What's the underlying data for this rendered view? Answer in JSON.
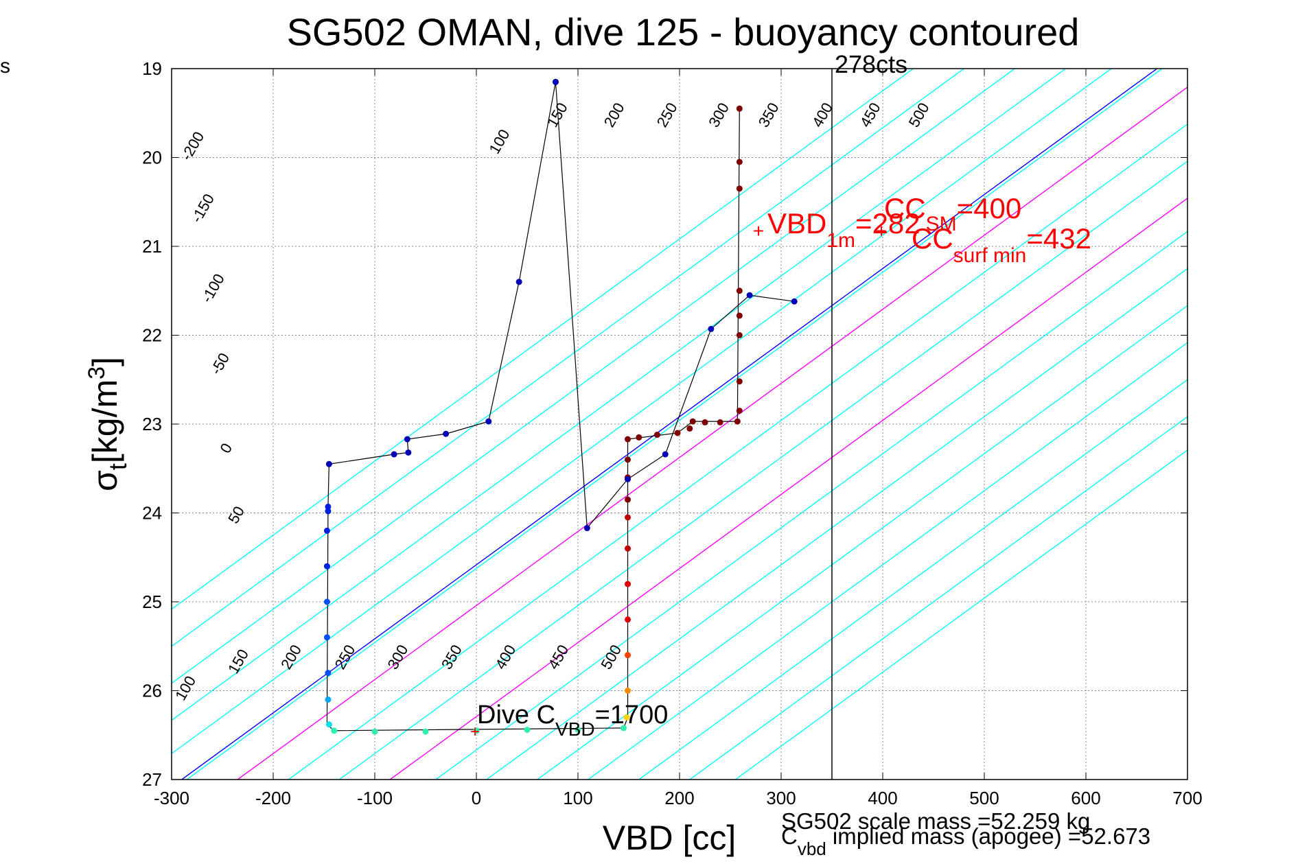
{
  "chart_data": {
    "type": "scatter",
    "title": "SG502 OMAN, dive 125 - buoyancy contoured",
    "corner_label": "s",
    "xlabel": "VBD [cc]",
    "ylabel_main": "σ",
    "ylabel_sub": "t",
    "ylabel_units": "[kg/m",
    "ylabel_sup": "3",
    "ylabel_close": "]",
    "xlim": [
      -300,
      700
    ],
    "ylim": [
      27,
      19
    ],
    "y_reversed": true,
    "grid": true,
    "x_ticks": [
      -300,
      -200,
      -100,
      0,
      100,
      200,
      300,
      400,
      500,
      600,
      700
    ],
    "x_tick_labels": [
      "-300",
      "-200",
      "-100",
      "0",
      "100",
      "200",
      "300",
      "400",
      "500",
      "600",
      "700"
    ],
    "y_ticks": [
      19,
      20,
      21,
      22,
      23,
      24,
      25,
      26,
      27
    ],
    "y_tick_labels": [
      "19",
      "20",
      "21",
      "22",
      "23",
      "24",
      "25",
      "26",
      "27"
    ],
    "colors": {
      "contour": "#00ffff",
      "contour_zero": "#0000ff",
      "contour_highlight": "#ff00ff",
      "annotation": "#ff0000",
      "path": "#000000",
      "vline": "#000000"
    },
    "contours": {
      "slope_cc_per_sigma": 120,
      "lines": [
        {
          "vbd_at_27": -530,
          "color": "contour"
        },
        {
          "vbd_at_27": -480,
          "color": "contour"
        },
        {
          "vbd_at_27": -430,
          "color": "contour"
        },
        {
          "vbd_at_27": -380,
          "color": "contour"
        },
        {
          "vbd_at_27": -335,
          "color": "contour"
        },
        {
          "vbd_at_27": -290,
          "color": "contour_zero"
        },
        {
          "vbd_at_27": -285,
          "color": "contour"
        },
        {
          "vbd_at_27": -235,
          "color": "contour_highlight"
        },
        {
          "vbd_at_27": -185,
          "color": "contour"
        },
        {
          "vbd_at_27": -135,
          "color": "contour"
        },
        {
          "vbd_at_27": -85,
          "color": "contour_highlight"
        },
        {
          "vbd_at_27": -40,
          "color": "contour"
        },
        {
          "vbd_at_27": 10,
          "color": "contour"
        },
        {
          "vbd_at_27": 60,
          "color": "contour"
        },
        {
          "vbd_at_27": 110,
          "color": "contour"
        },
        {
          "vbd_at_27": 160,
          "color": "contour"
        },
        {
          "vbd_at_27": 210,
          "color": "contour"
        },
        {
          "vbd_at_27": 255,
          "color": "contour"
        }
      ]
    },
    "contour_labels": [
      {
        "text": "-200",
        "vbd": -275,
        "sigma": 19.9
      },
      {
        "text": "-150",
        "vbd": -265,
        "sigma": 20.6
      },
      {
        "text": "-100",
        "vbd": -255,
        "sigma": 21.5
      },
      {
        "text": "-50",
        "vbd": -248,
        "sigma": 22.35
      },
      {
        "text": "0",
        "vbd": -242,
        "sigma": 23.3
      },
      {
        "text": "50",
        "vbd": -232,
        "sigma": 24.05
      },
      {
        "text": "100",
        "vbd": 27,
        "sigma": 19.85
      },
      {
        "text": "150",
        "vbd": 84,
        "sigma": 19.55
      },
      {
        "text": "200",
        "vbd": 140,
        "sigma": 19.55
      },
      {
        "text": "250",
        "vbd": 192,
        "sigma": 19.55
      },
      {
        "text": "300",
        "vbd": 243,
        "sigma": 19.55
      },
      {
        "text": "350",
        "vbd": 292,
        "sigma": 19.55
      },
      {
        "text": "400",
        "vbd": 345,
        "sigma": 19.55
      },
      {
        "text": "450",
        "vbd": 392,
        "sigma": 19.55
      },
      {
        "text": "500",
        "vbd": 440,
        "sigma": 19.55
      },
      {
        "text": "100",
        "vbd": -282,
        "sigma": 26.0
      },
      {
        "text": "150",
        "vbd": -230,
        "sigma": 25.7
      },
      {
        "text": "200",
        "vbd": -178,
        "sigma": 25.65
      },
      {
        "text": "250",
        "vbd": -125,
        "sigma": 25.65
      },
      {
        "text": "300",
        "vbd": -73,
        "sigma": 25.65
      },
      {
        "text": "350",
        "vbd": -20,
        "sigma": 25.65
      },
      {
        "text": "400",
        "vbd": 33,
        "sigma": 25.65
      },
      {
        "text": "450",
        "vbd": 85,
        "sigma": 25.65
      },
      {
        "text": "500",
        "vbd": 137,
        "sigma": 25.65
      }
    ],
    "descent_points": [
      {
        "vbd": 78,
        "sigma": 19.15
      },
      {
        "vbd": 42,
        "sigma": 21.4
      },
      {
        "vbd": 12,
        "sigma": 22.97
      },
      {
        "vbd": -30,
        "sigma": 23.11
      },
      {
        "vbd": -68,
        "sigma": 23.17
      },
      {
        "vbd": -67,
        "sigma": 23.32
      },
      {
        "vbd": -81,
        "sigma": 23.34
      },
      {
        "vbd": -145,
        "sigma": 23.45
      },
      {
        "vbd": -146,
        "sigma": 23.93
      },
      {
        "vbd": -146,
        "sigma": 23.98
      },
      {
        "vbd": -147,
        "sigma": 24.2
      },
      {
        "vbd": -147,
        "sigma": 24.6
      },
      {
        "vbd": -147,
        "sigma": 25.0
      },
      {
        "vbd": -147,
        "sigma": 25.4
      },
      {
        "vbd": -146,
        "sigma": 25.8
      },
      {
        "vbd": -146,
        "sigma": 26.1
      },
      {
        "vbd": -145,
        "sigma": 26.38
      },
      {
        "vbd": -140,
        "sigma": 26.45
      },
      {
        "vbd": -100,
        "sigma": 26.46
      },
      {
        "vbd": -50,
        "sigma": 26.46
      },
      {
        "vbd": 0,
        "sigma": 26.45
      },
      {
        "vbd": 50,
        "sigma": 26.44
      },
      {
        "vbd": 100,
        "sigma": 26.44
      },
      {
        "vbd": 145,
        "sigma": 26.42
      }
    ],
    "ascent_points": [
      {
        "vbd": 148,
        "sigma": 26.3
      },
      {
        "vbd": 149,
        "sigma": 26.0
      },
      {
        "vbd": 149,
        "sigma": 25.6
      },
      {
        "vbd": 149,
        "sigma": 25.2
      },
      {
        "vbd": 149,
        "sigma": 24.8
      },
      {
        "vbd": 149,
        "sigma": 24.4
      },
      {
        "vbd": 149,
        "sigma": 24.05
      },
      {
        "vbd": 149,
        "sigma": 23.85
      },
      {
        "vbd": 149,
        "sigma": 23.6
      },
      {
        "vbd": 149,
        "sigma": 23.4
      },
      {
        "vbd": 149,
        "sigma": 23.17
      },
      {
        "vbd": 160,
        "sigma": 23.15
      },
      {
        "vbd": 178,
        "sigma": 23.12
      },
      {
        "vbd": 198,
        "sigma": 23.1
      },
      {
        "vbd": 210,
        "sigma": 23.05
      },
      {
        "vbd": 213,
        "sigma": 22.97
      },
      {
        "vbd": 225,
        "sigma": 22.98
      },
      {
        "vbd": 240,
        "sigma": 22.98
      },
      {
        "vbd": 257,
        "sigma": 22.97
      },
      {
        "vbd": 259,
        "sigma": 22.85
      },
      {
        "vbd": 259,
        "sigma": 22.52
      },
      {
        "vbd": 259,
        "sigma": 22.0
      },
      {
        "vbd": 259,
        "sigma": 21.78
      },
      {
        "vbd": 259,
        "sigma": 21.5
      },
      {
        "vbd": 259,
        "sigma": 20.35
      },
      {
        "vbd": 259,
        "sigma": 20.05
      },
      {
        "vbd": 259,
        "sigma": 19.45
      }
    ],
    "path_points": [
      {
        "vbd": 78,
        "sigma": 19.15
      },
      {
        "vbd": 42,
        "sigma": 21.4
      },
      {
        "vbd": 12,
        "sigma": 22.97
      },
      {
        "vbd": -30,
        "sigma": 23.11
      },
      {
        "vbd": -68,
        "sigma": 23.17
      },
      {
        "vbd": -67,
        "sigma": 23.32
      },
      {
        "vbd": -81,
        "sigma": 23.34
      },
      {
        "vbd": -145,
        "sigma": 23.45
      },
      {
        "vbd": -146,
        "sigma": 23.93
      },
      {
        "vbd": -147,
        "sigma": 26.38
      },
      {
        "vbd": -140,
        "sigma": 26.45
      },
      {
        "vbd": 145,
        "sigma": 26.42
      },
      {
        "vbd": 149,
        "sigma": 26.3
      },
      {
        "vbd": 149,
        "sigma": 23.17
      },
      {
        "vbd": 198,
        "sigma": 23.1
      },
      {
        "vbd": 213,
        "sigma": 22.97
      },
      {
        "vbd": 257,
        "sigma": 22.97
      },
      {
        "vbd": 259,
        "sigma": 19.45
      }
    ],
    "overlay_path": [
      {
        "vbd": 78,
        "sigma": 19.15
      },
      {
        "vbd": 109,
        "sigma": 24.17
      },
      {
        "vbd": 149,
        "sigma": 23.62
      },
      {
        "vbd": 186,
        "sigma": 23.34
      },
      {
        "vbd": 231,
        "sigma": 21.93
      },
      {
        "vbd": 269,
        "sigma": 21.55
      },
      {
        "vbd": 313,
        "sigma": 21.62
      }
    ],
    "vertical_line": {
      "vbd": 350,
      "label": "278cts"
    },
    "annotations": {
      "vbd1m": {
        "vbd": 282,
        "sigma": 20.85,
        "main": "VBD",
        "sub": "1m",
        "tail": "=282"
      },
      "ccsm": {
        "vbd": 400,
        "sigma": 20.85,
        "main": "CC",
        "sub": "SM",
        "tail": "=400"
      },
      "ccsurf": {
        "vbd": 432,
        "sigma": 21.0,
        "main": "CC",
        "sub": "surf min",
        "tail": "=432"
      },
      "dive_c": {
        "vbd": 0,
        "sigma": 26.45,
        "main": "Dive C",
        "sub": "VBD",
        "tail": "=1700"
      },
      "scale_mass": "SG502 scale mass =52.259 kg",
      "implied_main": "C",
      "implied_sub": "vbd",
      "implied_tail": " implied mass (apogee) =52.673"
    }
  }
}
